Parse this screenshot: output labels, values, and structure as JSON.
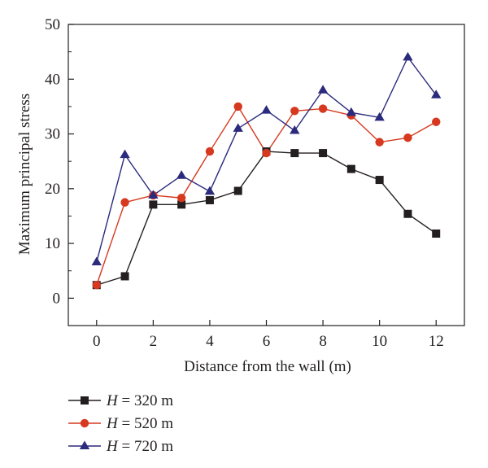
{
  "chart_data": {
    "type": "line",
    "xlabel": "Distance from the wall (m)",
    "ylabel": "Maximum principal stress",
    "xlim": [
      -1,
      13
    ],
    "ylim": [
      -5,
      50
    ],
    "xticks": [
      0,
      2,
      4,
      6,
      8,
      10,
      12
    ],
    "yticks": [
      0,
      10,
      20,
      30,
      40,
      50
    ],
    "grid": false,
    "legend_position": "bottom-left, below plot",
    "x": [
      0,
      1,
      2,
      3,
      4,
      5,
      6,
      7,
      8,
      9,
      10,
      11,
      12
    ],
    "series": [
      {
        "name": "H = 320 m",
        "legend_var": "H",
        "legend_rest": " = 320 m",
        "marker": "square",
        "color": "#231f20",
        "values": [
          2.4,
          4.0,
          17.1,
          17.1,
          17.9,
          19.6,
          26.8,
          26.5,
          26.5,
          23.6,
          21.6,
          15.4,
          11.8
        ]
      },
      {
        "name": "H = 520 m",
        "legend_var": "H",
        "legend_rest": " = 520 m",
        "marker": "circle",
        "color": "#d6391f",
        "values": [
          2.4,
          17.5,
          18.8,
          18.3,
          26.8,
          35.0,
          26.5,
          34.2,
          34.6,
          33.4,
          28.5,
          29.3,
          32.2
        ]
      },
      {
        "name": "H = 720 m",
        "legend_var": "H",
        "legend_rest": " = 720 m",
        "marker": "triangle",
        "color": "#2b2a7c",
        "values": [
          6.6,
          26.2,
          18.8,
          22.4,
          19.5,
          31.0,
          34.3,
          30.6,
          38.0,
          33.9,
          33.0,
          44.0,
          37.1
        ]
      }
    ]
  }
}
